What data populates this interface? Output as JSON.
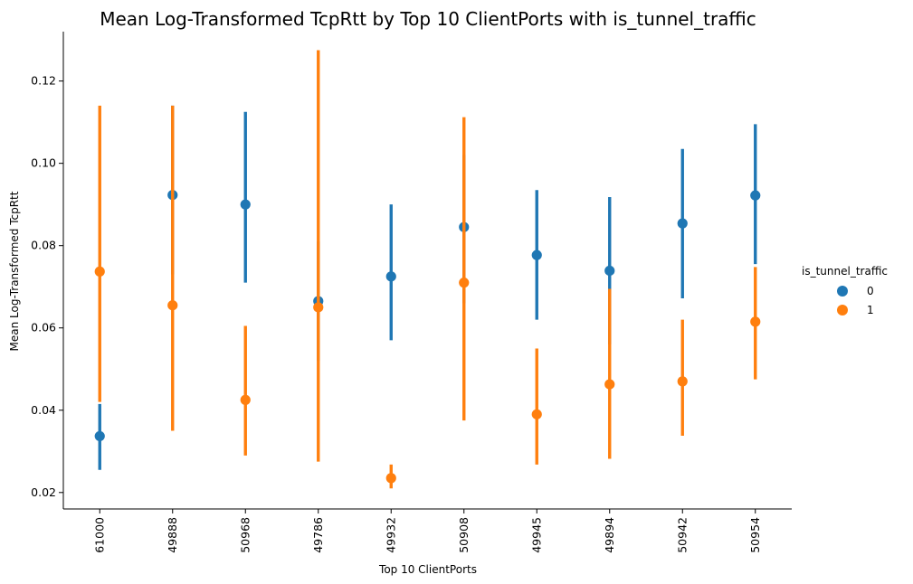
{
  "chart_data": {
    "type": "pointplot",
    "title": "Mean Log-Transformed TcpRtt by Top 10 ClientPorts with is_tunnel_traffic",
    "xlabel": "Top 10 ClientPorts",
    "ylabel": "Mean Log-Transformed TcpRtt",
    "categories": [
      "61000",
      "49888",
      "50968",
      "49786",
      "49932",
      "50908",
      "49945",
      "49894",
      "50942",
      "50954"
    ],
    "ylim": [
      0.016,
      0.132
    ],
    "yticks": [
      0.02,
      0.04,
      0.06,
      0.08,
      0.1,
      0.12
    ],
    "ytick_labels": [
      "0.02",
      "0.04",
      "0.06",
      "0.08",
      "0.10",
      "0.12"
    ],
    "legend": {
      "title": "is_tunnel_traffic",
      "placement": "right"
    },
    "series": [
      {
        "name": "0",
        "color": "#1f77b4",
        "values": [
          0.0337,
          0.0923,
          0.09,
          0.0665,
          0.0725,
          0.0845,
          0.0777,
          0.0739,
          0.0854,
          0.0922
        ],
        "ci_low": [
          0.0255,
          0.073,
          0.071,
          0.052,
          0.057,
          0.066,
          0.062,
          0.056,
          0.0672,
          0.0755
        ],
        "ci_high": [
          0.0415,
          0.114,
          0.1125,
          0.081,
          0.09,
          0.102,
          0.0935,
          0.0918,
          0.1035,
          0.1095
        ]
      },
      {
        "name": "1",
        "color": "#ff7f0e",
        "values": [
          0.0737,
          0.0655,
          0.0425,
          0.065,
          0.0235,
          0.071,
          0.039,
          0.0463,
          0.047,
          0.0615
        ],
        "ci_low": [
          0.042,
          0.035,
          0.029,
          0.0275,
          0.021,
          0.0375,
          0.0268,
          0.0282,
          0.0338,
          0.0475
        ],
        "ci_high": [
          0.114,
          0.114,
          0.0605,
          0.1275,
          0.0268,
          0.1112,
          0.055,
          0.0695,
          0.062,
          0.0748
        ]
      }
    ]
  }
}
